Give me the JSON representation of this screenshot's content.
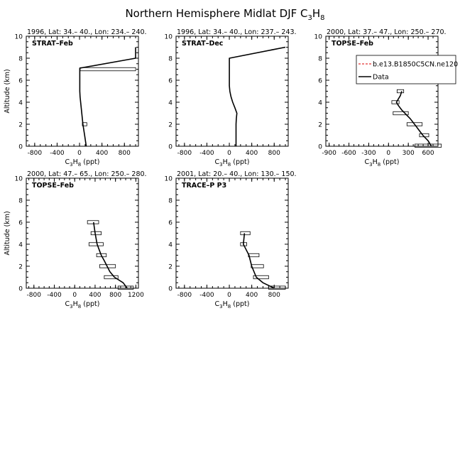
{
  "figure": {
    "title": "Northern Hemisphere Midlat DJF C",
    "title_sub1": "3",
    "title_mid": "H",
    "title_sub2": "8"
  },
  "chart_data": [
    {
      "type": "line",
      "header": "1996, Lat: 34.– 40., Lon: 234.– 240.",
      "campaign": "STRAT–Feb",
      "xlabel_main": "C",
      "xlabel_sub1": "3",
      "xlabel_mid": "H",
      "xlabel_sub2": "8",
      "xlabel_unit": " (ppt)",
      "ylabel": "Altitude (km)",
      "xlim": [
        -950,
        1050
      ],
      "ylim": [
        0,
        10
      ],
      "xticks": [
        -800,
        -400,
        0,
        400,
        800
      ],
      "yticks": [
        0,
        2,
        4,
        6,
        8,
        10
      ],
      "series": [
        {
          "role": "model",
          "x": [
            120,
            90,
            60,
            40,
            20,
            10,
            5,
            5,
            5,
            5,
            5,
            5,
            5,
            5,
            1000,
            1000
          ],
          "y": [
            0,
            1,
            2,
            3,
            4,
            4.5,
            5,
            5.5,
            6,
            6.5,
            6.9,
            7,
            7.1,
            7.1,
            8,
            9
          ]
        }
      ],
      "obs_bars": [
        {
          "y": 2.0,
          "lo": 50,
          "hi": 130
        },
        {
          "y": 7.0,
          "lo": 10,
          "hi": 1000
        }
      ]
    },
    {
      "type": "line",
      "header": "1996, Lat: 34.– 40., Lon: 237.– 243.",
      "campaign": "STRAT–Dec",
      "xlabel_main": "C",
      "xlabel_sub1": "3",
      "xlabel_mid": "H",
      "xlabel_sub2": "8",
      "xlabel_unit": " (ppt)",
      "ylabel": "",
      "xlim": [
        -950,
        1050
      ],
      "ylim": [
        0,
        10
      ],
      "xticks": [
        -800,
        -400,
        0,
        400,
        800
      ],
      "yticks": [
        0,
        2,
        4,
        6,
        8,
        10
      ],
      "series": [
        {
          "role": "model",
          "x": [
            120,
            120,
            120,
            125,
            135,
            100,
            60,
            30,
            10,
            0,
            0,
            0,
            0,
            1000
          ],
          "y": [
            0,
            1,
            2,
            2.5,
            3,
            3.5,
            4,
            4.5,
            5,
            5.5,
            6,
            7,
            8,
            9
          ]
        }
      ],
      "obs_bars": []
    },
    {
      "type": "line",
      "header": "2000, Lat: 37.– 47., Lon: 250.– 270.",
      "campaign": "TOPSE–Feb",
      "xlabel_main": "C",
      "xlabel_sub1": "3",
      "xlabel_mid": "H",
      "xlabel_sub2": "8",
      "xlabel_unit": " (ppt)",
      "ylabel": "",
      "xlim": [
        -950,
        750
      ],
      "ylim": [
        0,
        10
      ],
      "xticks": [
        -900,
        -600,
        -300,
        0,
        300,
        600
      ],
      "yticks": [
        0,
        2,
        4,
        6,
        8,
        10
      ],
      "series": [
        {
          "role": "model",
          "x": [
            650,
            600,
            520,
            420,
            330,
            200,
            150,
            120,
            180,
            200
          ],
          "y": [
            0,
            0.5,
            1,
            1.8,
            2.5,
            3.3,
            3.7,
            4.0,
            4.6,
            5.0
          ]
        }
      ],
      "obs_bars": [
        {
          "y": 0.05,
          "lo": 400,
          "hi": 800
        },
        {
          "y": 1.0,
          "lo": 470,
          "hi": 610
        },
        {
          "y": 2.0,
          "lo": 280,
          "hi": 510
        },
        {
          "y": 3.0,
          "lo": 70,
          "hi": 300
        },
        {
          "y": 4.0,
          "lo": 50,
          "hi": 160
        },
        {
          "y": 5.0,
          "lo": 130,
          "hi": 230
        }
      ],
      "legend": {
        "items": [
          {
            "label": "b.e13.B1850C5CN.ne120",
            "style": "dashed",
            "color": "#dd0000"
          },
          {
            "label": "Data",
            "style": "solid",
            "color": "#000000"
          }
        ]
      }
    },
    {
      "type": "line",
      "header": "2000, Lat: 47.– 65., Lon: 250.– 280.",
      "campaign": "TOPSE–Feb",
      "xlabel_main": "C",
      "xlabel_sub1": "3",
      "xlabel_mid": "H",
      "xlabel_sub2": "8",
      "xlabel_unit": " (ppt)",
      "ylabel": "Altitude (km)",
      "xlim": [
        -950,
        1250
      ],
      "ylim": [
        0,
        10
      ],
      "xticks": [
        -800,
        -400,
        0,
        400,
        800,
        1200
      ],
      "yticks": [
        0,
        2,
        4,
        6,
        8,
        10
      ],
      "series": [
        {
          "role": "model",
          "x": [
            1030,
            950,
            780,
            690,
            580,
            520,
            480,
            440,
            400,
            370
          ],
          "y": [
            0,
            0.5,
            1,
            1.5,
            2.5,
            3,
            3.5,
            4,
            5,
            6
          ]
        }
      ],
      "obs_bars": [
        {
          "y": 0.05,
          "lo": 850,
          "hi": 1150
        },
        {
          "y": 1.0,
          "lo": 580,
          "hi": 850
        },
        {
          "y": 2.0,
          "lo": 490,
          "hi": 800
        },
        {
          "y": 3.0,
          "lo": 430,
          "hi": 620
        },
        {
          "y": 4.0,
          "lo": 280,
          "hi": 560
        },
        {
          "y": 5.0,
          "lo": 320,
          "hi": 520
        },
        {
          "y": 6.0,
          "lo": 250,
          "hi": 470
        }
      ]
    },
    {
      "type": "line",
      "header": "2001, Lat: 20.– 40., Lon: 130.– 150.",
      "campaign": "TRACE–P P3",
      "xlabel_main": "C",
      "xlabel_sub1": "3",
      "xlabel_mid": "H",
      "xlabel_sub2": "8",
      "xlabel_unit": " (ppt)",
      "ylabel": "",
      "xlim": [
        -950,
        1050
      ],
      "ylim": [
        0,
        10
      ],
      "xticks": [
        -800,
        -400,
        0,
        400,
        800
      ],
      "yticks": [
        0,
        2,
        4,
        6,
        8,
        10
      ],
      "series": [
        {
          "role": "model",
          "x": [
            800,
            600,
            480,
            400,
            350,
            300,
            250,
            260,
            270
          ],
          "y": [
            0,
            0.5,
            1,
            2,
            3,
            3.5,
            4,
            4.5,
            5
          ]
        }
      ],
      "obs_bars": [
        {
          "y": 0.05,
          "lo": 700,
          "hi": 1000
        },
        {
          "y": 1.0,
          "lo": 430,
          "hi": 700
        },
        {
          "y": 2.0,
          "lo": 390,
          "hi": 610
        },
        {
          "y": 3.0,
          "lo": 340,
          "hi": 530
        },
        {
          "y": 4.0,
          "lo": 200,
          "hi": 310
        },
        {
          "y": 5.0,
          "lo": 200,
          "hi": 370
        }
      ]
    }
  ]
}
